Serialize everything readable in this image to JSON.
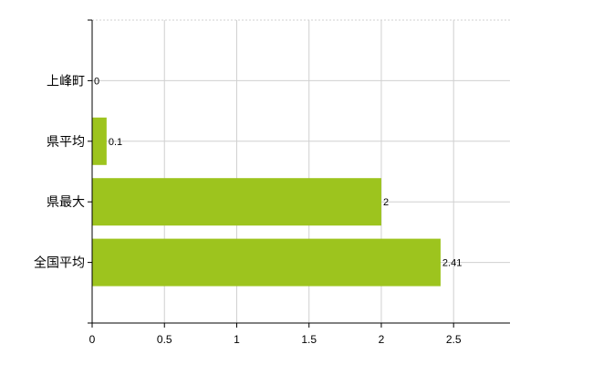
{
  "chart_data": {
    "type": "bar",
    "orientation": "horizontal",
    "categories": [
      "上峰町",
      "県平均",
      "県最大",
      "全国平均"
    ],
    "values": [
      0,
      0.1,
      2,
      2.41
    ],
    "data_labels": [
      "0",
      "0.1",
      "2",
      "2.41"
    ],
    "xlim": [
      0,
      2.89
    ],
    "xticks": [
      0,
      0.5,
      1,
      1.5,
      2,
      2.5
    ],
    "xtick_labels": [
      "0",
      "0.5",
      "1",
      "1.5",
      "2",
      "2.5"
    ],
    "grid": true,
    "bar_color": "#9dc41e",
    "grid_color": "#d0d0d0"
  }
}
